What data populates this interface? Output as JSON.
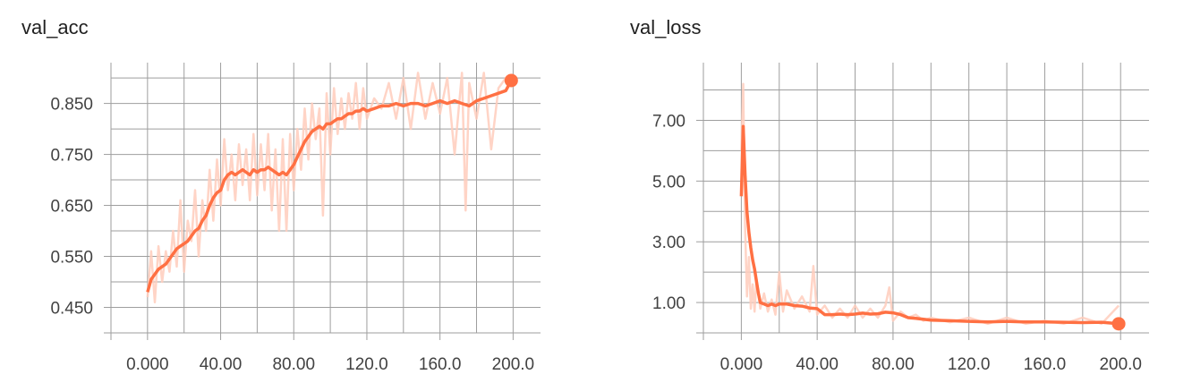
{
  "chart_data": [
    {
      "type": "line",
      "title": "val_acc",
      "xlabel": "",
      "ylabel": "",
      "xlim": [
        -20,
        215
      ],
      "ylim": [
        0.4,
        0.93
      ],
      "x_ticks": [
        "0.000",
        "40.00",
        "80.00",
        "120.0",
        "160.0",
        "200.0"
      ],
      "x_tick_values": [
        0,
        40,
        80,
        120,
        160,
        200
      ],
      "y_ticks": [
        "0.450",
        "0.550",
        "0.650",
        "0.750",
        "0.850"
      ],
      "y_tick_values": [
        0.45,
        0.55,
        0.65,
        0.75,
        0.85
      ],
      "grid": true,
      "colors": {
        "smoothed": "#ff7043",
        "raw": "#ffccbc"
      },
      "series": [
        {
          "role": "smoothed",
          "x": [
            0,
            2,
            4,
            6,
            8,
            10,
            12,
            14,
            16,
            18,
            20,
            22,
            24,
            26,
            28,
            30,
            32,
            34,
            36,
            38,
            40,
            42,
            44,
            46,
            48,
            50,
            52,
            54,
            56,
            58,
            60,
            62,
            64,
            66,
            68,
            70,
            72,
            74,
            76,
            78,
            80,
            82,
            84,
            86,
            88,
            90,
            92,
            94,
            96,
            98,
            100,
            102,
            104,
            106,
            108,
            110,
            112,
            114,
            116,
            118,
            120,
            124,
            128,
            132,
            136,
            140,
            144,
            148,
            152,
            156,
            160,
            164,
            168,
            172,
            176,
            180,
            184,
            188,
            192,
            196,
            199
          ],
          "y": [
            0.48,
            0.505,
            0.515,
            0.525,
            0.53,
            0.535,
            0.545,
            0.555,
            0.565,
            0.57,
            0.575,
            0.58,
            0.59,
            0.6,
            0.605,
            0.62,
            0.63,
            0.65,
            0.665,
            0.675,
            0.68,
            0.7,
            0.71,
            0.715,
            0.71,
            0.715,
            0.72,
            0.715,
            0.71,
            0.72,
            0.715,
            0.72,
            0.72,
            0.725,
            0.72,
            0.715,
            0.71,
            0.715,
            0.71,
            0.72,
            0.73,
            0.745,
            0.76,
            0.775,
            0.785,
            0.795,
            0.8,
            0.805,
            0.8,
            0.81,
            0.81,
            0.815,
            0.82,
            0.82,
            0.825,
            0.83,
            0.83,
            0.835,
            0.835,
            0.84,
            0.835,
            0.84,
            0.845,
            0.845,
            0.85,
            0.845,
            0.85,
            0.85,
            0.845,
            0.85,
            0.855,
            0.85,
            0.855,
            0.85,
            0.845,
            0.855,
            0.86,
            0.865,
            0.87,
            0.875,
            0.895
          ]
        },
        {
          "role": "raw",
          "x": [
            0,
            2,
            4,
            6,
            8,
            10,
            12,
            14,
            16,
            18,
            20,
            22,
            24,
            26,
            28,
            30,
            32,
            34,
            36,
            38,
            40,
            42,
            44,
            46,
            48,
            50,
            52,
            54,
            56,
            58,
            60,
            62,
            64,
            66,
            68,
            70,
            72,
            74,
            76,
            78,
            80,
            82,
            84,
            86,
            88,
            90,
            92,
            94,
            96,
            98,
            100,
            102,
            104,
            106,
            108,
            110,
            112,
            114,
            116,
            118,
            120,
            124,
            128,
            132,
            136,
            140,
            144,
            148,
            152,
            156,
            160,
            164,
            168,
            172,
            174,
            176,
            180,
            184,
            188,
            192,
            196,
            199
          ],
          "y": [
            0.47,
            0.56,
            0.46,
            0.57,
            0.5,
            0.56,
            0.52,
            0.6,
            0.53,
            0.66,
            0.52,
            0.62,
            0.58,
            0.68,
            0.55,
            0.66,
            0.6,
            0.72,
            0.62,
            0.74,
            0.65,
            0.78,
            0.68,
            0.75,
            0.66,
            0.77,
            0.69,
            0.76,
            0.66,
            0.79,
            0.67,
            0.77,
            0.68,
            0.79,
            0.64,
            0.76,
            0.6,
            0.78,
            0.6,
            0.79,
            0.68,
            0.8,
            0.72,
            0.84,
            0.74,
            0.85,
            0.78,
            0.84,
            0.63,
            0.87,
            0.75,
            0.88,
            0.79,
            0.86,
            0.8,
            0.87,
            0.82,
            0.89,
            0.8,
            0.88,
            0.82,
            0.86,
            0.84,
            0.89,
            0.82,
            0.9,
            0.8,
            0.91,
            0.82,
            0.89,
            0.83,
            0.9,
            0.75,
            0.91,
            0.64,
            0.89,
            0.82,
            0.91,
            0.76,
            0.88,
            0.9,
            0.9
          ]
        }
      ]
    },
    {
      "type": "line",
      "title": "val_loss",
      "xlabel": "",
      "ylabel": "",
      "xlim": [
        -20,
        215
      ],
      "ylim": [
        0.0,
        8.9
      ],
      "x_ticks": [
        "0.000",
        "40.00",
        "80.00",
        "120.0",
        "160.0",
        "200.0"
      ],
      "x_tick_values": [
        0,
        40,
        80,
        120,
        160,
        200
      ],
      "y_ticks": [
        "1.00",
        "3.00",
        "5.00",
        "7.00"
      ],
      "y_tick_values": [
        1,
        3,
        5,
        7
      ],
      "grid": true,
      "colors": {
        "smoothed": "#ff7043",
        "raw": "#ffccbc"
      },
      "series": [
        {
          "role": "smoothed",
          "x": [
            0,
            1,
            2,
            3,
            4,
            5,
            6,
            7,
            8,
            9,
            10,
            12,
            14,
            16,
            18,
            20,
            24,
            28,
            32,
            36,
            40,
            44,
            48,
            52,
            56,
            60,
            64,
            68,
            72,
            76,
            80,
            84,
            88,
            92,
            96,
            100,
            110,
            120,
            130,
            140,
            150,
            160,
            170,
            180,
            190,
            199
          ],
          "y": [
            4.5,
            6.8,
            5.2,
            4.0,
            3.3,
            2.8,
            2.4,
            2.1,
            1.7,
            1.3,
            1.0,
            0.95,
            0.9,
            0.95,
            0.9,
            0.95,
            0.95,
            0.9,
            0.88,
            0.82,
            0.8,
            0.6,
            0.6,
            0.62,
            0.6,
            0.62,
            0.65,
            0.62,
            0.63,
            0.68,
            0.66,
            0.6,
            0.5,
            0.48,
            0.45,
            0.42,
            0.4,
            0.38,
            0.36,
            0.38,
            0.36,
            0.36,
            0.35,
            0.34,
            0.35,
            0.3
          ]
        },
        {
          "role": "raw",
          "x": [
            0,
            1,
            2,
            3,
            4,
            5,
            6,
            7,
            8,
            10,
            12,
            14,
            16,
            18,
            20,
            22,
            24,
            28,
            32,
            36,
            38,
            40,
            44,
            48,
            52,
            56,
            60,
            64,
            68,
            72,
            76,
            78,
            80,
            84,
            88,
            92,
            96,
            100,
            110,
            120,
            130,
            140,
            150,
            160,
            170,
            180,
            190,
            199
          ],
          "y": [
            6.0,
            8.2,
            3.5,
            1.2,
            2.5,
            0.8,
            1.6,
            0.7,
            1.8,
            0.8,
            1.3,
            0.7,
            1.1,
            0.6,
            2.0,
            0.7,
            1.4,
            0.8,
            1.2,
            0.7,
            2.2,
            0.6,
            0.9,
            0.5,
            0.8,
            0.5,
            0.9,
            0.5,
            0.8,
            0.5,
            0.9,
            1.5,
            0.4,
            0.7,
            0.5,
            0.6,
            0.4,
            0.5,
            0.35,
            0.5,
            0.3,
            0.5,
            0.3,
            0.4,
            0.3,
            0.5,
            0.3,
            0.9
          ]
        }
      ]
    }
  ]
}
